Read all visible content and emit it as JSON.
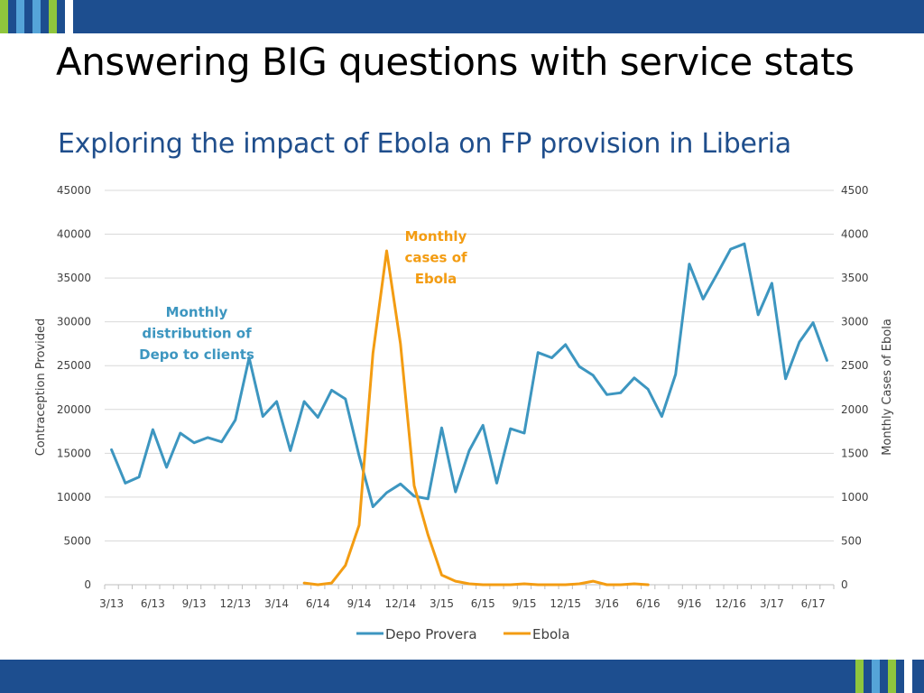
{
  "slide": {
    "title": "Answering BIG questions with service stats",
    "colors": {
      "bar": "#1d4e8f",
      "stripe_light": "#8fc63d",
      "stripe_blue": "#55a4d8"
    }
  },
  "chart_data": {
    "type": "line",
    "title": "Exploring the impact of Ebola on FP provision in Liberia",
    "ylabel": "Contraception Provided",
    "y2label": "Monthly Cases of Ebola",
    "ylim": [
      0,
      45000
    ],
    "y2lim": [
      0,
      4500
    ],
    "yticks": [
      "0",
      "5000",
      "10000",
      "15000",
      "20000",
      "25000",
      "30000",
      "35000",
      "40000",
      "45000"
    ],
    "y2ticks": [
      "0",
      "500",
      "1000",
      "1500",
      "2000",
      "2500",
      "3000",
      "3500",
      "4000",
      "4500"
    ],
    "x_ticklabels": [
      "3/13",
      "6/13",
      "9/13",
      "12/13",
      "3/14",
      "6/14",
      "9/14",
      "12/14",
      "3/15",
      "6/15",
      "9/15",
      "12/15",
      "3/16",
      "6/16",
      "9/16",
      "12/16",
      "3/17",
      "6/17"
    ],
    "n_months": 53,
    "legend_position": "bottom",
    "series": [
      {
        "name": "Depo Provera",
        "axis": "left",
        "color": "#3d96c0",
        "start_index": 0,
        "values": [
          15400,
          11600,
          12300,
          17700,
          13400,
          17300,
          16200,
          16800,
          16300,
          18800,
          25900,
          19200,
          20900,
          15300,
          20900,
          19100,
          22200,
          21200,
          14700,
          8900,
          10500,
          11500,
          10100,
          9800,
          17900,
          10600,
          15300,
          18200,
          11600,
          17800,
          17300,
          26500,
          25900,
          27400,
          24900,
          23900,
          21700,
          21900,
          23600,
          22300,
          19200,
          24000,
          36600,
          32600,
          35400,
          38300,
          38900,
          30800,
          34400,
          23500,
          27700,
          29900,
          25600
        ]
      },
      {
        "name": "Ebola",
        "axis": "right",
        "color": "#f39c12",
        "start_index": 14,
        "values": [
          20,
          0,
          20,
          220,
          680,
          2640,
          3810,
          2750,
          1130,
          570,
          110,
          40,
          10,
          0,
          0,
          0,
          10,
          0,
          0,
          0,
          10,
          40,
          0,
          0,
          10,
          0
        ]
      }
    ],
    "annotations": [
      {
        "id": "depo",
        "lines": [
          "Monthly",
          "distribution of",
          "Depo to clients"
        ],
        "color": "#3d96c0"
      },
      {
        "id": "ebola",
        "lines": [
          "Monthly",
          "cases of",
          "Ebola"
        ],
        "color": "#f39c12"
      }
    ]
  }
}
